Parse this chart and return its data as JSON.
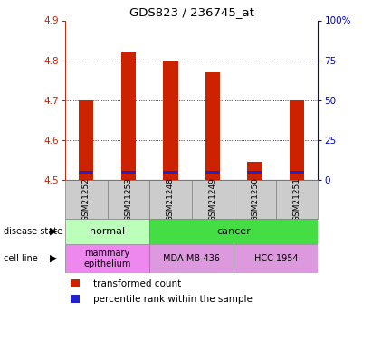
{
  "title": "GDS823 / 236745_at",
  "samples": [
    "GSM21252",
    "GSM21253",
    "GSM21248",
    "GSM21249",
    "GSM21250",
    "GSM21251"
  ],
  "bar_bottom": 4.5,
  "transformed_counts": [
    4.7,
    4.82,
    4.8,
    4.77,
    4.545,
    4.7
  ],
  "percentile_values": [
    4.515,
    4.515,
    4.515,
    4.515,
    4.515,
    4.515
  ],
  "percentile_bar_height": 0.008,
  "ylim": [
    4.5,
    4.9
  ],
  "yticks": [
    4.5,
    4.6,
    4.7,
    4.8,
    4.9
  ],
  "right_yticks": [
    0,
    25,
    50,
    75,
    100
  ],
  "right_ylim": [
    0,
    100
  ],
  "bar_color": "#cc2200",
  "pct_color": "#2222cc",
  "bar_width": 0.35,
  "left_label_color": "#cc2200",
  "right_label_color": "#0000bb",
  "grid_lines": [
    4.6,
    4.7,
    4.8
  ],
  "normal_color": "#bbffbb",
  "cancer_color": "#44dd44",
  "mamm_color": "#ee88ee",
  "cell2_color": "#dd99dd",
  "sample_bg_color": "#cccccc"
}
